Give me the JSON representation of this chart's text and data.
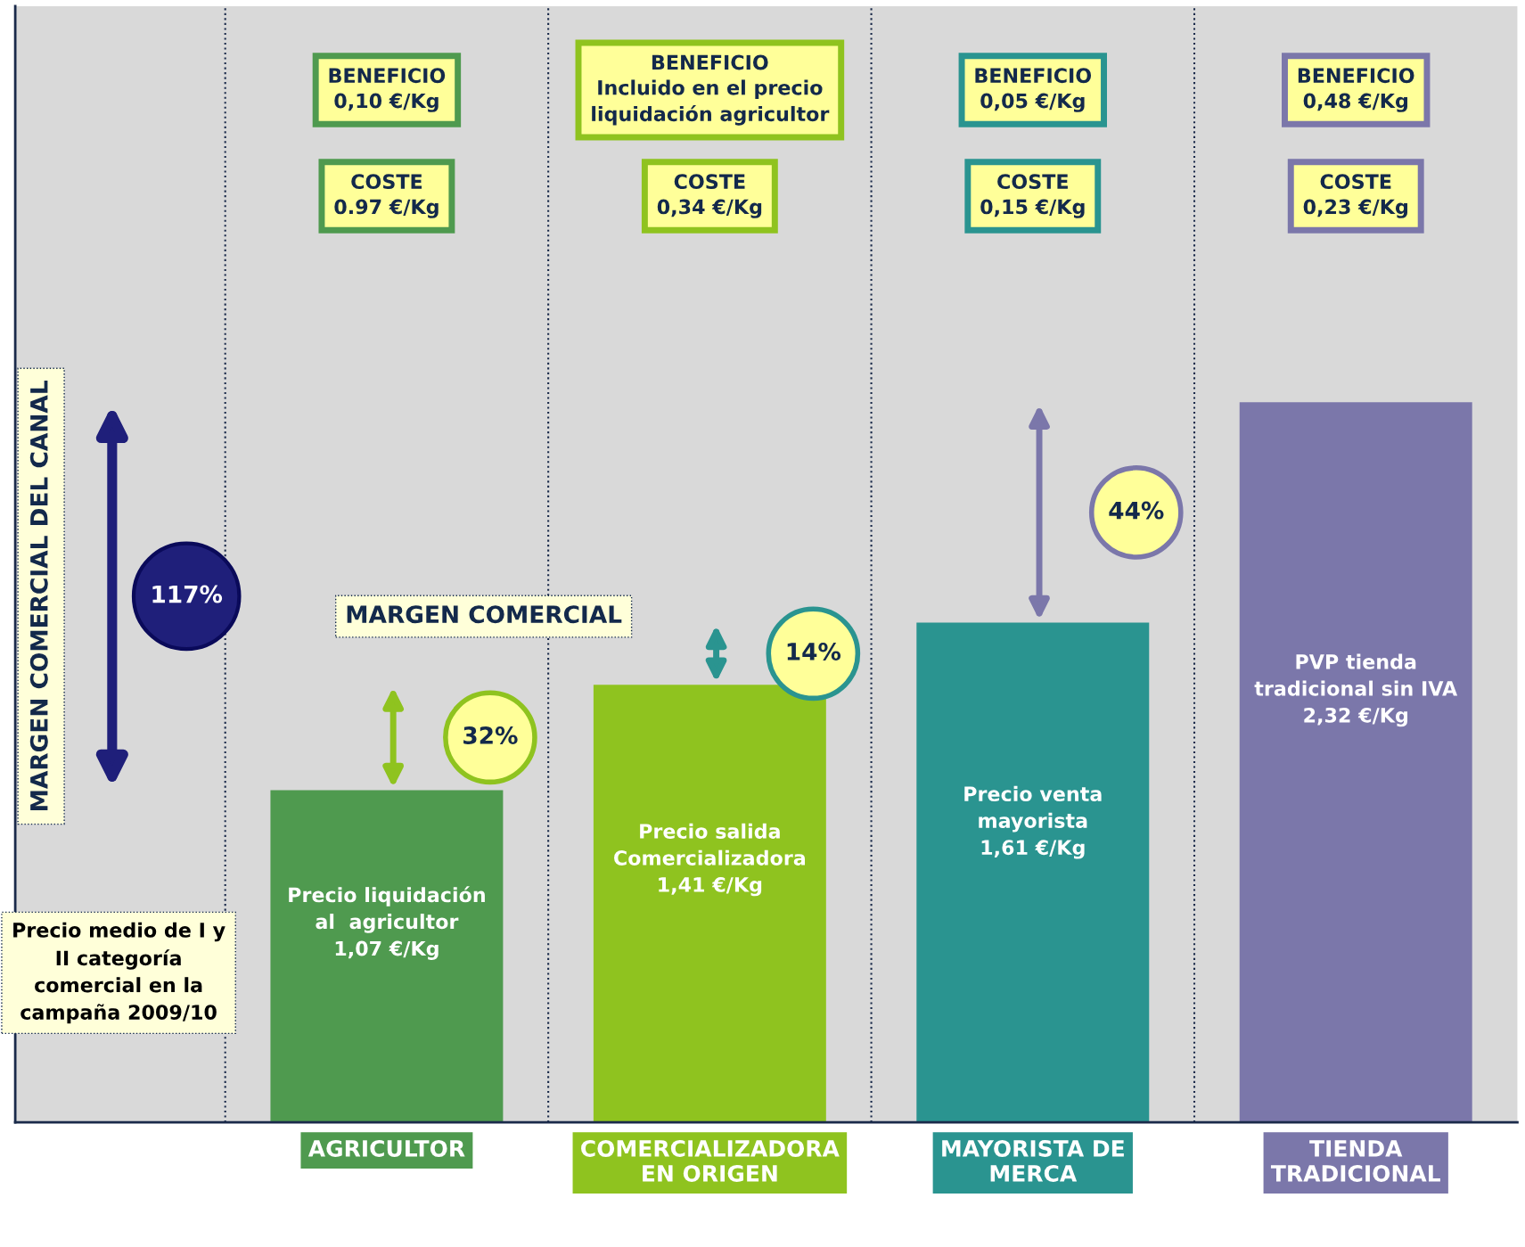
{
  "chart_data": {
    "type": "bar",
    "categories": [
      "AGRICULTOR",
      "COMERCIALIZADORA\nEN ORIGEN",
      "MAYORISTA DE\nMERCA",
      "TIENDA\nTRADICIONAL"
    ],
    "values": [
      1.07,
      1.41,
      1.61,
      2.32
    ],
    "colors": [
      "#4f9a4f",
      "#8fc31f",
      "#2a9490",
      "#7b77aa"
    ],
    "value_labels": [
      "Precio liquidación\nal  agricultor\n1,07 €/Kg",
      "Precio salida\nComercializadora\n1,41 €/Kg",
      "Precio venta\nmayorista\n1,61 €/Kg",
      "PVP tienda\ntradicional sin IVA\n2,32 €/Kg"
    ],
    "annotations": [
      "BENEFICIO\n0,10 €/Kg",
      "COSTE\n0.97 €/Kg",
      "BENEFICIO\nIncluido en el precio\nliquidación agricultor",
      "COSTE\n0,34 €/Kg",
      "BENEFICIO\n0,05 €/Kg",
      "COSTE\n0,15 €/Kg",
      "BENEFICIO\n0,48 €/Kg",
      "COSTE\n0,23 €/Kg",
      "32%",
      "14%",
      "44%",
      "117%",
      "MARGEN COMERCIAL DEL CANAL",
      "MARGEN COMERCIAL",
      "Precio medio de I y\nII categoría\ncomercial en la\ncampaña 2009/10"
    ]
  }
}
